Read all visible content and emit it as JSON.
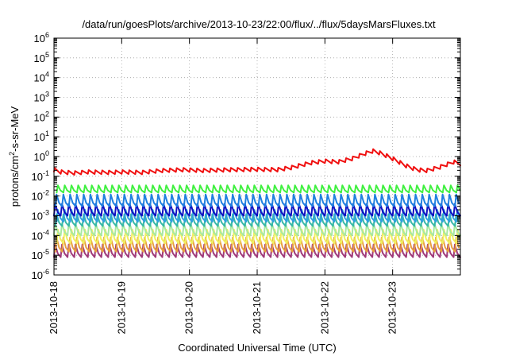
{
  "chart_data": {
    "type": "line",
    "title": "/data/run/goesPlots/archive/2013-10-23/22:00/flux/../flux/5daysMarsFluxes.txt",
    "xlabel": "Coordinated Universal Time (UTC)",
    "ylabel": {
      "base": "protons/cm",
      "sup": "2",
      "rest": "-s-sr-MeV"
    },
    "x_tick_labels": [
      "2013-10-18",
      "2013-10-19",
      "2013-10-20",
      "2013-10-21",
      "2013-10-22",
      "2013-10-23"
    ],
    "xlim_days": [
      0,
      6.0
    ],
    "y_scale": "log",
    "ylim": [
      1e-06,
      1000000.0
    ],
    "y_tick_labels": [
      {
        "base": "10",
        "exp": "-6",
        "value": 1e-06
      },
      {
        "base": "10",
        "exp": "-5",
        "value": 1e-05
      },
      {
        "base": "10",
        "exp": "-4",
        "value": 0.0001
      },
      {
        "base": "10",
        "exp": "-3",
        "value": 0.001
      },
      {
        "base": "10",
        "exp": "-2",
        "value": 0.01
      },
      {
        "base": "10",
        "exp": "-1",
        "value": 0.1
      },
      {
        "base": "10",
        "exp": "0",
        "value": 1
      },
      {
        "base": "10",
        "exp": "1",
        "value": 10
      },
      {
        "base": "10",
        "exp": "2",
        "value": 100
      },
      {
        "base": "10",
        "exp": "3",
        "value": 1000
      },
      {
        "base": "10",
        "exp": "4",
        "value": 10000
      },
      {
        "base": "10",
        "exp": "5",
        "value": 100000
      },
      {
        "base": "10",
        "exp": "6",
        "value": 1000000
      }
    ],
    "grid": true,
    "series": [
      {
        "color": "#a03a7a",
        "low": 8e-06,
        "high": 3.5e-05
      },
      {
        "color": "#e8a040",
        "low": 1.5e-05,
        "high": 8e-05
      },
      {
        "color": "#f0f060",
        "low": 4e-05,
        "high": 0.0002
      },
      {
        "color": "#a8e8a0",
        "low": 0.0001,
        "high": 0.0004
      },
      {
        "color": "#38b8a8",
        "low": 0.0003,
        "high": 0.0012
      },
      {
        "color": "#30a0e0",
        "low": 0.0005,
        "high": 0.002
      },
      {
        "color": "#1010c0",
        "low": 0.001,
        "high": 0.004
      },
      {
        "color": "#2080e0",
        "low": 0.003,
        "high": 0.012
      },
      {
        "color": "#40f040",
        "low": 0.015,
        "high": 0.035
      },
      {
        "color": "#f01010",
        "profile": [
          [
            0.0,
            0.22
          ],
          [
            0.1,
            0.17
          ],
          [
            0.3,
            0.15
          ],
          [
            0.5,
            0.17
          ],
          [
            0.8,
            0.16
          ],
          [
            1.0,
            0.17
          ],
          [
            1.3,
            0.16
          ],
          [
            1.6,
            0.2
          ],
          [
            1.9,
            0.22
          ],
          [
            2.2,
            0.2
          ],
          [
            2.6,
            0.22
          ],
          [
            3.0,
            0.23
          ],
          [
            3.3,
            0.22
          ],
          [
            3.5,
            0.28
          ],
          [
            3.8,
            0.5
          ],
          [
            4.0,
            0.6
          ],
          [
            4.2,
            0.55
          ],
          [
            4.4,
            0.8
          ],
          [
            4.6,
            1.5
          ],
          [
            4.72,
            2.0
          ],
          [
            4.85,
            1.4
          ],
          [
            5.0,
            0.8
          ],
          [
            5.2,
            0.35
          ],
          [
            5.35,
            0.22
          ],
          [
            5.5,
            0.2
          ],
          [
            5.7,
            0.3
          ],
          [
            5.9,
            0.55
          ],
          [
            6.0,
            0.45
          ]
        ]
      }
    ]
  }
}
